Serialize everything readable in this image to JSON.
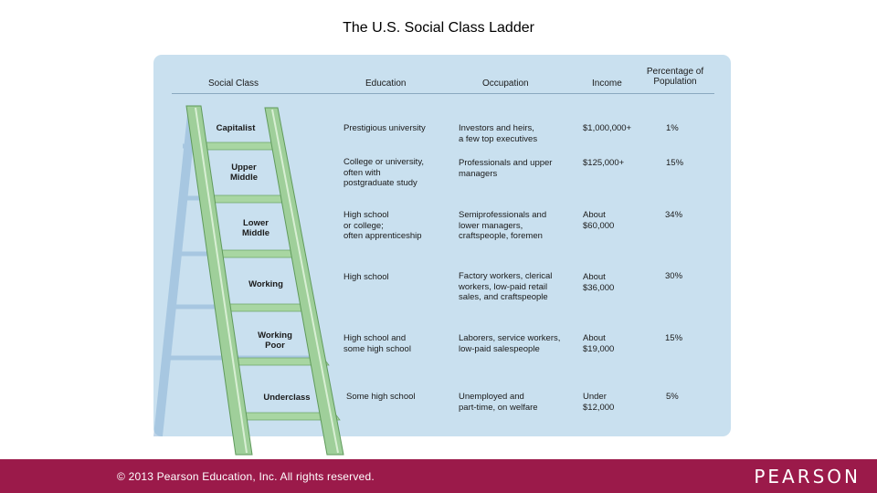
{
  "slide": {
    "title": "The U.S. Social Class Ladder"
  },
  "table": {
    "headers": {
      "social_class": "Social Class",
      "education": "Education",
      "occupation": "Occupation",
      "income": "Income",
      "percentage_line1": "Percentage of",
      "percentage_line2": "Population"
    },
    "rows": [
      {
        "class_line1": "Capitalist",
        "class_line2": "",
        "education": [
          "Prestigious university"
        ],
        "occupation": [
          "Investors and heirs,",
          "a few top executives"
        ],
        "income": [
          "$1,000,000+"
        ],
        "percentage": "1%"
      },
      {
        "class_line1": "Upper",
        "class_line2": "Middle",
        "education": [
          "College or university,",
          "often with",
          "postgraduate study"
        ],
        "occupation": [
          "Professionals and upper",
          "managers"
        ],
        "income": [
          "$125,000+"
        ],
        "percentage": "15%"
      },
      {
        "class_line1": "Lower",
        "class_line2": "Middle",
        "education": [
          "High school",
          "or college;",
          "often apprenticeship"
        ],
        "occupation": [
          "Semiprofessionals and",
          "lower managers,",
          "craftspeople, foremen"
        ],
        "income": [
          "About",
          "$60,000"
        ],
        "percentage": "34%"
      },
      {
        "class_line1": "Working",
        "class_line2": "",
        "education": [
          "High school"
        ],
        "occupation": [
          "Factory workers, clerical",
          "workers, low-paid retail",
          "sales, and craftspeople"
        ],
        "income": [
          "About",
          "$36,000"
        ],
        "percentage": "30%"
      },
      {
        "class_line1": "Working",
        "class_line2": "Poor",
        "education": [
          "High school and",
          "some high school"
        ],
        "occupation": [
          "Laborers, service workers,",
          "low-paid salespeople"
        ],
        "income": [
          "About",
          "$19,000"
        ],
        "percentage": "15%"
      },
      {
        "class_line1": "Underclass",
        "class_line2": "",
        "education": [
          "Some high school"
        ],
        "occupation": [
          "Unemployed and",
          "part-time, on welfare"
        ],
        "income": [
          "Under",
          "$12,000"
        ],
        "percentage": "5%"
      }
    ]
  },
  "footer": {
    "copyright": "© 2013 Pearson Education, Inc. All rights reserved.",
    "brand": "PEARSON"
  },
  "colors": {
    "panel_background": "#c9e0ef",
    "ladder_green": "#9fcf9a",
    "footer_background": "#9b1a4a"
  }
}
